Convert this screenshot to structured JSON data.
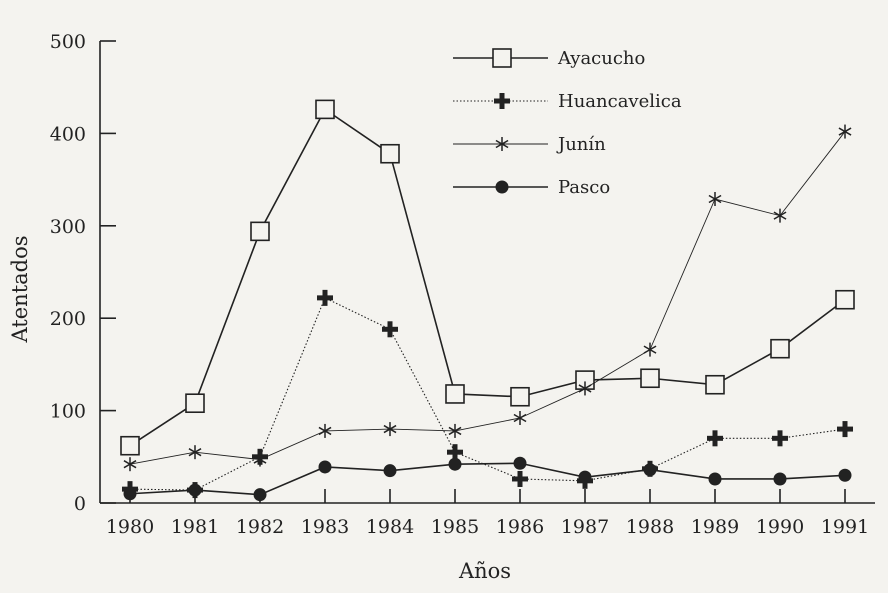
{
  "chart_data": {
    "type": "line",
    "title": "",
    "xlabel": "Años",
    "ylabel": "Atentados",
    "ylim": [
      0,
      500
    ],
    "yticks": [
      0,
      100,
      200,
      300,
      400,
      500
    ],
    "categories": [
      "1980",
      "1981",
      "1982",
      "1983",
      "1984",
      "1985",
      "1986",
      "1987",
      "1988",
      "1989",
      "1990",
      "1991"
    ],
    "grid": false,
    "legend_position": "top-center",
    "series": [
      {
        "name": "Ayacucho",
        "marker": "open-square",
        "line": "solid",
        "color": "#222222",
        "values": [
          62,
          108,
          294,
          426,
          378,
          118,
          115,
          133,
          135,
          128,
          167,
          220
        ]
      },
      {
        "name": "Huancavelica",
        "marker": "plus",
        "line": "dotted",
        "color": "#222222",
        "values": [
          15,
          14,
          50,
          222,
          188,
          55,
          26,
          24,
          37,
          70,
          70,
          80
        ]
      },
      {
        "name": "Junín",
        "marker": "asterisk",
        "line": "thin",
        "color": "#222222",
        "values": [
          42,
          55,
          47,
          78,
          80,
          78,
          92,
          124,
          166,
          329,
          311,
          402
        ]
      },
      {
        "name": "Pasco",
        "marker": "filled-circle",
        "line": "solid",
        "color": "#222222",
        "values": [
          10,
          14,
          9,
          39,
          35,
          42,
          43,
          28,
          36,
          26,
          26,
          30
        ]
      }
    ]
  }
}
